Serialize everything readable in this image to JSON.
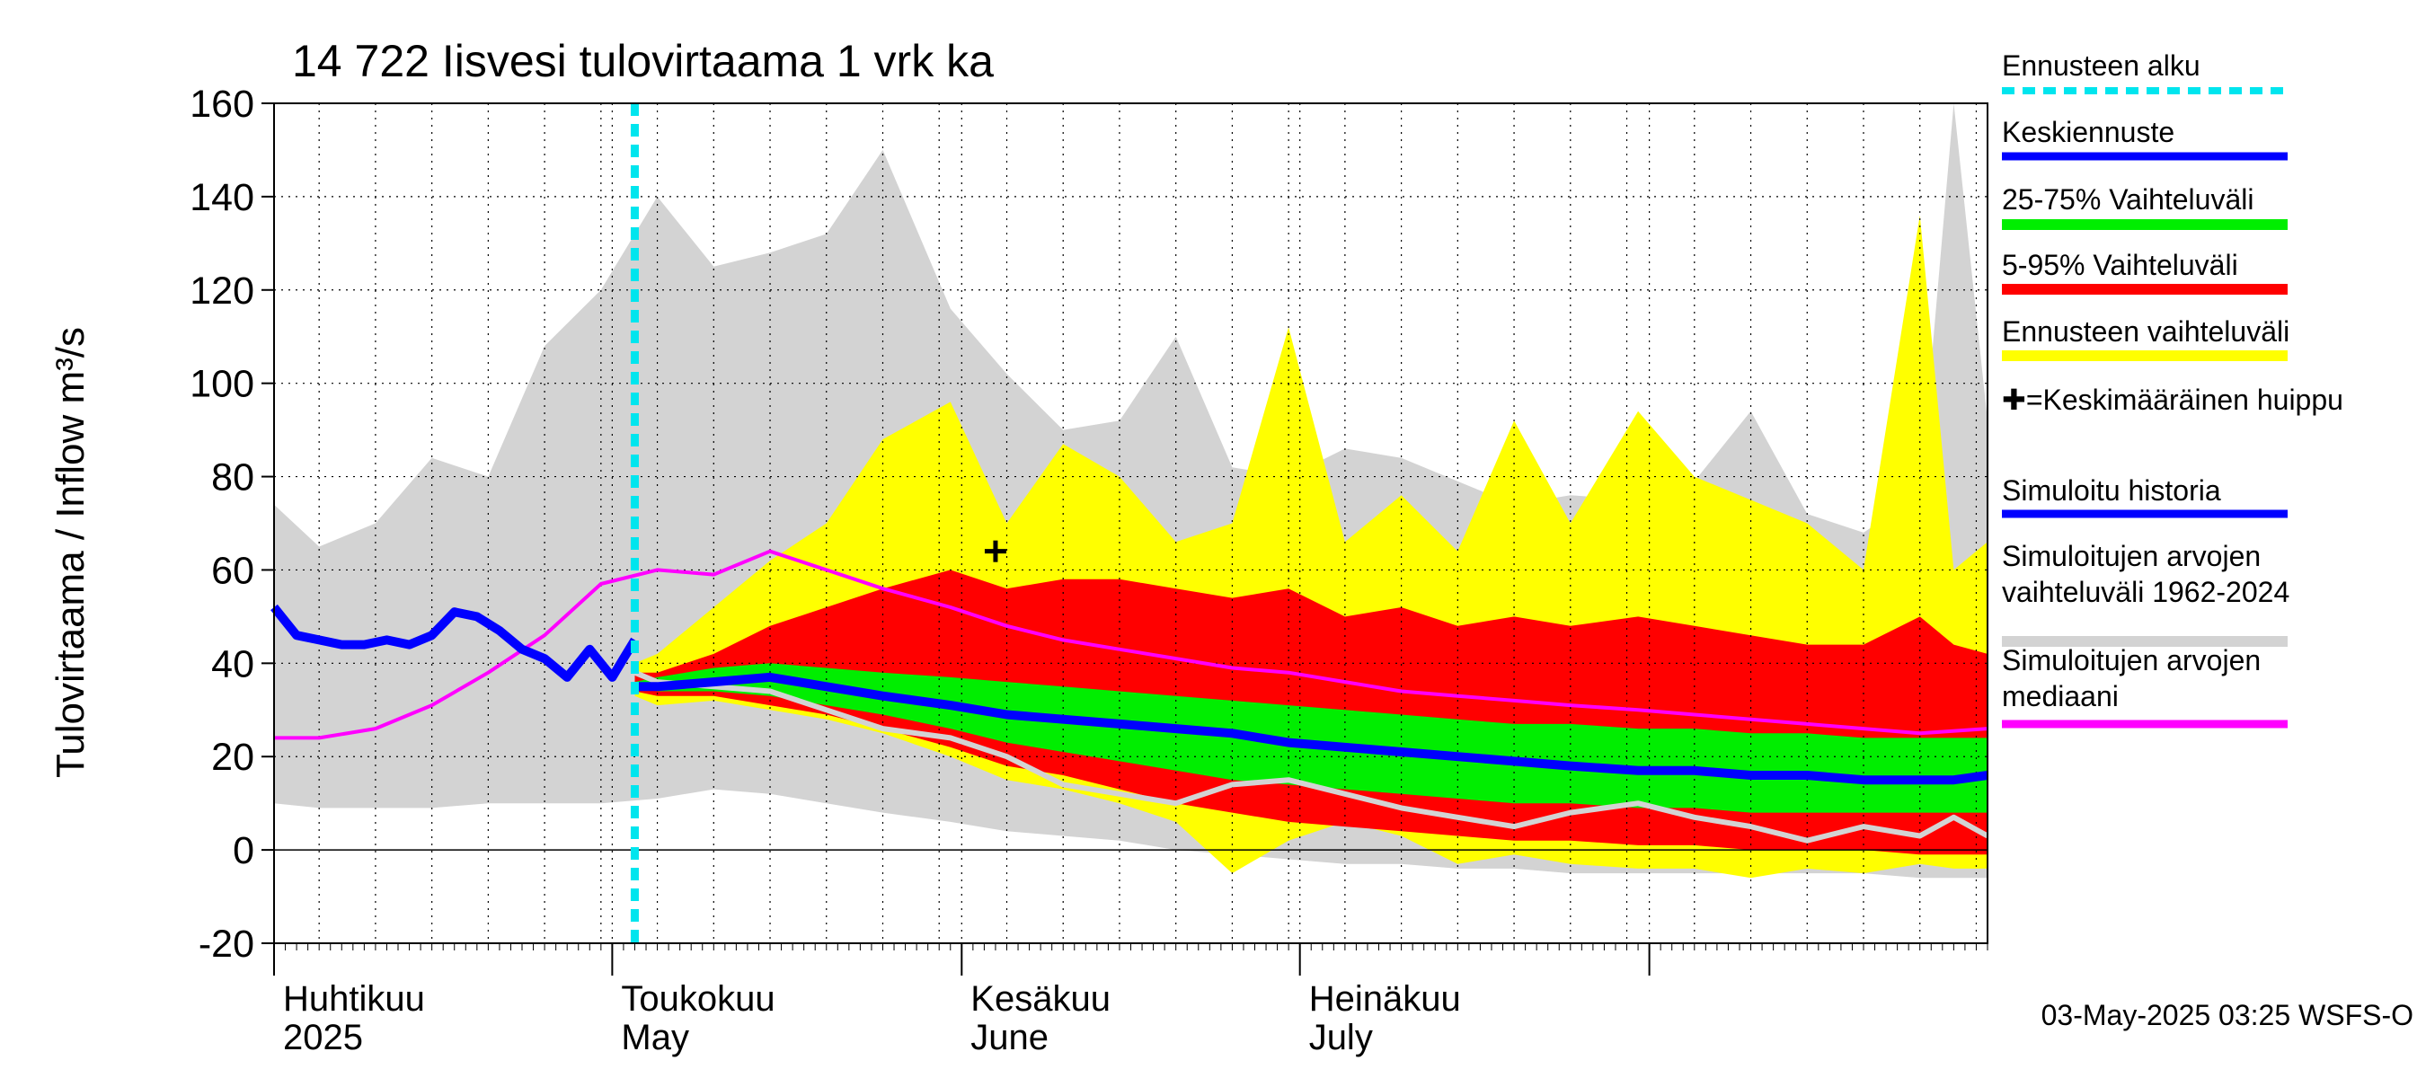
{
  "chart_data": {
    "type": "area",
    "title": "14 722 Iisvesi tulovirtaama 1 vrk ka",
    "ylabel": "Tulovirtaama / Inflow    m³/s",
    "ylim": [
      -20,
      160
    ],
    "yticks": [
      -20,
      0,
      20,
      40,
      60,
      80,
      100,
      120,
      140,
      160
    ],
    "xlim": [
      "2025-04-01",
      "2025-08-31"
    ],
    "grid": true,
    "legend_position": "right",
    "forecast_start": "2025-05-03",
    "month_labels": [
      {
        "fi": "Huhtikuu",
        "en": "2025",
        "date": "2025-04-01"
      },
      {
        "fi": "Toukokuu",
        "en": "May",
        "date": "2025-05-01"
      },
      {
        "fi": "Kesäkuu",
        "en": "June",
        "date": "2025-06-01"
      },
      {
        "fi": "Heinäkuu",
        "en": "July",
        "date": "2025-07-01"
      }
    ],
    "legend": [
      {
        "label": "Ennusteen alku",
        "color": "#00e5ee",
        "style": "dashed"
      },
      {
        "label": "Keskiennuste",
        "color": "#0000ff",
        "style": "line"
      },
      {
        "label": "25-75% Vaihteluväli",
        "color": "#00ee00",
        "style": "band"
      },
      {
        "label": "5-95% Vaihteluväli",
        "color": "#ff0000",
        "style": "band"
      },
      {
        "label": "Ennusteen vaihteluväli",
        "color": "#ffff00",
        "style": "band"
      },
      {
        "label": "✚=Keskimääräinen huippu",
        "color": "#000000",
        "style": "marker"
      },
      {
        "label": "Simuloitu historia",
        "color": "#0000ff",
        "style": "line"
      },
      {
        "label": "Simuloitujen arvojen vaihteluväli 1962-2024",
        "color": "#d3d3d3",
        "style": "band"
      },
      {
        "label": "Simuloitujen arvojen mediaani",
        "color": "#ff00ff",
        "style": "line"
      }
    ],
    "footer": "03-May-2025 03:25 WSFS-O",
    "mean_peak": {
      "date": "2025-06-04",
      "value": 64
    },
    "series": {
      "historical_range": {
        "x": [
          "2025-04-01",
          "2025-04-05",
          "2025-04-10",
          "2025-04-15",
          "2025-04-20",
          "2025-04-25",
          "2025-04-30",
          "2025-05-05",
          "2025-05-10",
          "2025-05-15",
          "2025-05-20",
          "2025-05-25",
          "2025-05-31",
          "2025-06-05",
          "2025-06-10",
          "2025-06-15",
          "2025-06-20",
          "2025-06-25",
          "2025-06-30",
          "2025-07-05",
          "2025-07-10",
          "2025-07-15",
          "2025-07-20",
          "2025-07-25",
          "2025-07-31",
          "2025-08-05",
          "2025-08-10",
          "2025-08-15",
          "2025-08-20",
          "2025-08-25",
          "2025-08-28",
          "2025-08-31"
        ],
        "low": [
          10,
          9,
          9,
          9,
          10,
          10,
          10,
          11,
          13,
          12,
          10,
          8,
          6,
          4,
          3,
          2,
          0,
          -1,
          -2,
          -3,
          -3,
          -4,
          -4,
          -5,
          -5,
          -5,
          -5,
          -5,
          -5,
          -6,
          -6,
          -6
        ],
        "high": [
          74,
          65,
          70,
          84,
          80,
          108,
          120,
          140,
          125,
          128,
          132,
          150,
          116,
          102,
          90,
          92,
          110,
          82,
          80,
          86,
          84,
          79,
          74,
          76,
          75,
          79,
          94,
          72,
          68,
          76,
          160,
          92
        ]
      },
      "forecast_range": {
        "x": [
          "2025-05-03",
          "2025-05-05",
          "2025-05-10",
          "2025-05-15",
          "2025-05-20",
          "2025-05-25",
          "2025-05-31",
          "2025-06-05",
          "2025-06-10",
          "2025-06-15",
          "2025-06-20",
          "2025-06-25",
          "2025-06-30",
          "2025-07-05",
          "2025-07-10",
          "2025-07-15",
          "2025-07-20",
          "2025-07-25",
          "2025-07-31",
          "2025-08-05",
          "2025-08-10",
          "2025-08-15",
          "2025-08-20",
          "2025-08-25",
          "2025-08-28",
          "2025-08-31"
        ],
        "low": [
          33,
          31,
          32,
          30,
          28,
          25,
          20,
          15,
          13,
          10,
          6,
          -5,
          2,
          6,
          3,
          -3,
          -1,
          -3,
          -4,
          -4,
          -6,
          -4,
          -5,
          -3,
          -4,
          -4
        ],
        "high": [
          40,
          42,
          52,
          62,
          70,
          88,
          96,
          70,
          87,
          80,
          66,
          70,
          112,
          66,
          76,
          64,
          92,
          70,
          94,
          80,
          75,
          70,
          60,
          136,
          60,
          66
        ]
      },
      "p5_95": {
        "x": [
          "2025-05-03",
          "2025-05-05",
          "2025-05-10",
          "2025-05-15",
          "2025-05-20",
          "2025-05-25",
          "2025-05-31",
          "2025-06-05",
          "2025-06-10",
          "2025-06-15",
          "2025-06-20",
          "2025-06-25",
          "2025-06-30",
          "2025-07-05",
          "2025-07-10",
          "2025-07-15",
          "2025-07-20",
          "2025-07-25",
          "2025-07-31",
          "2025-08-05",
          "2025-08-10",
          "2025-08-15",
          "2025-08-20",
          "2025-08-25",
          "2025-08-28",
          "2025-08-31"
        ],
        "low": [
          34,
          33,
          33,
          31,
          29,
          26,
          22,
          18,
          16,
          13,
          10,
          8,
          6,
          5,
          4,
          3,
          2,
          2,
          1,
          1,
          0,
          0,
          0,
          -1,
          -1,
          -1
        ],
        "high": [
          38,
          38,
          42,
          48,
          52,
          56,
          60,
          56,
          58,
          58,
          56,
          54,
          56,
          50,
          52,
          48,
          50,
          48,
          50,
          48,
          46,
          44,
          44,
          50,
          44,
          42
        ]
      },
      "p25_75": {
        "x": [
          "2025-05-03",
          "2025-05-05",
          "2025-05-10",
          "2025-05-15",
          "2025-05-20",
          "2025-05-25",
          "2025-05-31",
          "2025-06-05",
          "2025-06-10",
          "2025-06-15",
          "2025-06-20",
          "2025-06-25",
          "2025-06-30",
          "2025-07-05",
          "2025-07-10",
          "2025-07-15",
          "2025-07-20",
          "2025-07-25",
          "2025-07-31",
          "2025-08-05",
          "2025-08-10",
          "2025-08-15",
          "2025-08-20",
          "2025-08-25",
          "2025-08-28",
          "2025-08-31"
        ],
        "low": [
          35,
          34,
          34,
          33,
          31,
          29,
          26,
          23,
          21,
          19,
          17,
          15,
          14,
          13,
          12,
          11,
          10,
          10,
          9,
          9,
          8,
          8,
          8,
          8,
          8,
          8
        ],
        "high": [
          36,
          37,
          39,
          40,
          39,
          38,
          37,
          36,
          35,
          34,
          33,
          32,
          31,
          30,
          29,
          28,
          27,
          27,
          26,
          26,
          25,
          25,
          24,
          24,
          24,
          24
        ]
      },
      "mean_forecast": {
        "x": [
          "2025-05-03",
          "2025-05-05",
          "2025-05-10",
          "2025-05-15",
          "2025-05-20",
          "2025-05-25",
          "2025-05-31",
          "2025-06-05",
          "2025-06-10",
          "2025-06-15",
          "2025-06-20",
          "2025-06-25",
          "2025-06-30",
          "2025-07-05",
          "2025-07-10",
          "2025-07-15",
          "2025-07-20",
          "2025-07-25",
          "2025-07-31",
          "2025-08-05",
          "2025-08-10",
          "2025-08-15",
          "2025-08-20",
          "2025-08-25",
          "2025-08-28",
          "2025-08-31"
        ],
        "y": [
          35,
          35,
          36,
          37,
          35,
          33,
          31,
          29,
          28,
          27,
          26,
          25,
          23,
          22,
          21,
          20,
          19,
          18,
          17,
          17,
          16,
          16,
          15,
          15,
          15,
          16
        ]
      },
      "simulated_history": {
        "x": [
          "2025-04-01",
          "2025-04-03",
          "2025-04-05",
          "2025-04-07",
          "2025-04-09",
          "2025-04-11",
          "2025-04-13",
          "2025-04-15",
          "2025-04-17",
          "2025-04-19",
          "2025-04-21",
          "2025-04-23",
          "2025-04-25",
          "2025-04-27",
          "2025-04-29",
          "2025-05-01",
          "2025-05-02",
          "2025-05-03"
        ],
        "y": [
          52,
          46,
          45,
          44,
          44,
          45,
          44,
          46,
          51,
          50,
          47,
          43,
          41,
          37,
          43,
          37,
          41,
          45
        ]
      },
      "simulated_median": {
        "x": [
          "2025-04-01",
          "2025-04-05",
          "2025-04-10",
          "2025-04-15",
          "2025-04-20",
          "2025-04-25",
          "2025-04-30",
          "2025-05-05",
          "2025-05-10",
          "2025-05-15",
          "2025-05-20",
          "2025-05-25",
          "2025-05-31",
          "2025-06-05",
          "2025-06-10",
          "2025-06-15",
          "2025-06-20",
          "2025-06-25",
          "2025-06-30",
          "2025-07-05",
          "2025-07-10",
          "2025-07-15",
          "2025-07-20",
          "2025-07-25",
          "2025-07-31",
          "2025-08-05",
          "2025-08-10",
          "2025-08-15",
          "2025-08-20",
          "2025-08-25",
          "2025-08-31"
        ],
        "y": [
          24,
          24,
          26,
          31,
          38,
          46,
          57,
          60,
          59,
          64,
          60,
          56,
          52,
          48,
          45,
          43,
          41,
          39,
          38,
          36,
          34,
          33,
          32,
          31,
          30,
          29,
          28,
          27,
          26,
          25,
          26
        ]
      },
      "sim_history_continuation": {
        "x": [
          "2025-05-03",
          "2025-05-05",
          "2025-05-10",
          "2025-05-15",
          "2025-05-20",
          "2025-05-25",
          "2025-05-31",
          "2025-06-05",
          "2025-06-10",
          "2025-06-15",
          "2025-06-20",
          "2025-06-25",
          "2025-06-30",
          "2025-07-05",
          "2025-07-10",
          "2025-07-15",
          "2025-07-20",
          "2025-07-25",
          "2025-07-31",
          "2025-08-05",
          "2025-08-10",
          "2025-08-15",
          "2025-08-20",
          "2025-08-25",
          "2025-08-28",
          "2025-08-31"
        ],
        "y": [
          38,
          36,
          35,
          34,
          30,
          26,
          24,
          20,
          14,
          12,
          10,
          14,
          15,
          12,
          9,
          7,
          5,
          8,
          10,
          7,
          5,
          2,
          5,
          3,
          7,
          3
        ]
      }
    }
  }
}
